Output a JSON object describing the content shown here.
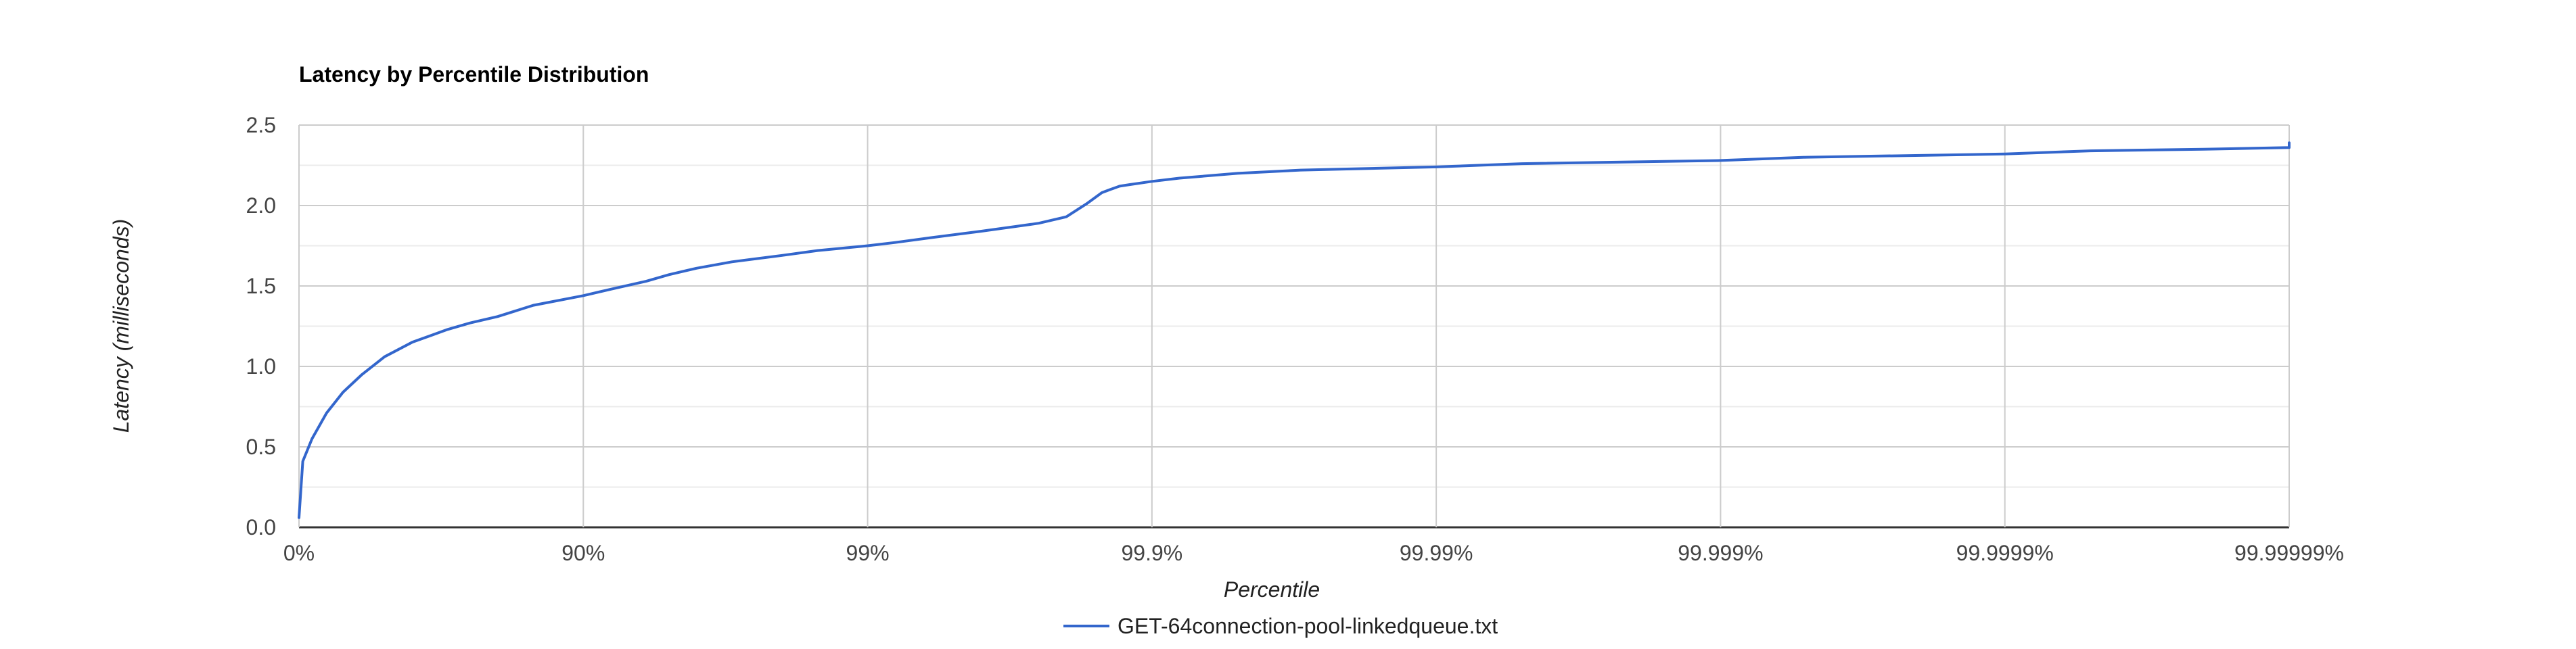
{
  "chart_data": {
    "type": "line",
    "title": "Latency by Percentile Distribution",
    "xlabel": "Percentile",
    "ylabel": "Latency (milliseconds)",
    "x_scale": "log-percentile",
    "x_ticks": [
      "0%",
      "90%",
      "99%",
      "99.9%",
      "99.99%",
      "99.999%",
      "99.9999%",
      "99.99999%"
    ],
    "y_ticks": [
      "0.0",
      "0.5",
      "1.0",
      "1.5",
      "2.0",
      "2.5"
    ],
    "ylim": [
      0,
      2.5
    ],
    "grid": true,
    "legend_position": "bottom",
    "colors": {
      "series": "#3366cc",
      "grid_major": "#cccccc",
      "grid_minor": "#ebebeb",
      "baseline": "#333333"
    },
    "series": [
      {
        "name": "GET-64connection-pool-linkedqueue.txt",
        "percentiles": [
          0,
          3,
          10,
          20,
          30,
          40,
          50,
          60,
          70,
          75,
          80,
          85,
          90,
          92,
          94,
          95,
          96,
          97,
          98,
          98.5,
          99,
          99.2,
          99.4,
          99.6,
          99.7,
          99.75,
          99.8,
          99.83,
          99.85,
          99.86,
          99.87,
          99.88,
          99.9,
          99.92,
          99.95,
          99.97,
          99.99,
          99.995,
          99.999,
          99.9995,
          99.9999,
          99.99995,
          99.99998,
          99.99999,
          99.999995,
          99.9999975,
          99.999999,
          99.9999993
        ],
        "latency_ms": [
          0.06,
          0.41,
          0.55,
          0.71,
          0.84,
          0.95,
          1.06,
          1.15,
          1.23,
          1.27,
          1.31,
          1.38,
          1.44,
          1.48,
          1.53,
          1.57,
          1.61,
          1.65,
          1.69,
          1.72,
          1.75,
          1.77,
          1.8,
          1.84,
          1.87,
          1.89,
          1.93,
          2.01,
          2.08,
          2.1,
          2.12,
          2.13,
          2.15,
          2.17,
          2.2,
          2.22,
          2.24,
          2.26,
          2.28,
          2.3,
          2.32,
          2.34,
          2.35,
          2.36,
          2.38,
          2.38,
          2.385,
          2.39
        ]
      }
    ]
  }
}
